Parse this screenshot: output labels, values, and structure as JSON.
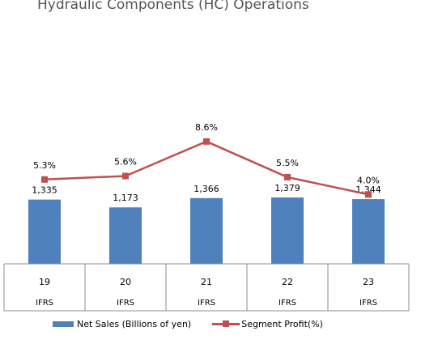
{
  "chart_data": {
    "type": "bar",
    "title": "Hydraulic Components (HC) Operations",
    "categories": [
      "19",
      "20",
      "21",
      "22",
      "23"
    ],
    "category_sublabels": [
      "IFRS",
      "IFRS",
      "IFRS",
      "IFRS",
      "IFRS"
    ],
    "series": [
      {
        "name": "Net Sales (Billions of yen)",
        "type": "bar",
        "values": [
          1335,
          1173,
          1366,
          1379,
          1344
        ],
        "labels": [
          "1,335",
          "1,173",
          "1,366",
          "1,379",
          "1,344"
        ],
        "color": "#4f81bd"
      },
      {
        "name": "Segment Profit(%)",
        "type": "line",
        "values": [
          5.3,
          5.6,
          8.6,
          5.5,
          4.0
        ],
        "labels": [
          "5.3%",
          "5.6%",
          "8.6%",
          "5.5%",
          "4.0%"
        ],
        "color": "#c0504d"
      }
    ],
    "legend": "bottom",
    "grid": false
  }
}
